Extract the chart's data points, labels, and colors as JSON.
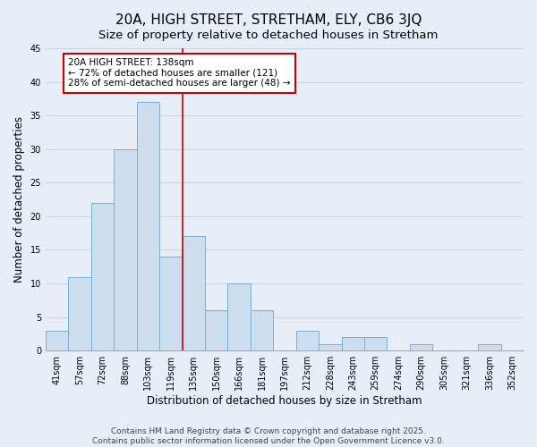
{
  "title": "20A, HIGH STREET, STRETHAM, ELY, CB6 3JQ",
  "subtitle": "Size of property relative to detached houses in Stretham",
  "xlabel": "Distribution of detached houses by size in Stretham",
  "ylabel": "Number of detached properties",
  "categories": [
    "41sqm",
    "57sqm",
    "72sqm",
    "88sqm",
    "103sqm",
    "119sqm",
    "135sqm",
    "150sqm",
    "166sqm",
    "181sqm",
    "197sqm",
    "212sqm",
    "228sqm",
    "243sqm",
    "259sqm",
    "274sqm",
    "290sqm",
    "305sqm",
    "321sqm",
    "336sqm",
    "352sqm"
  ],
  "values": [
    3,
    11,
    22,
    30,
    37,
    14,
    17,
    6,
    10,
    6,
    0,
    3,
    1,
    2,
    2,
    0,
    1,
    0,
    0,
    1,
    0
  ],
  "bar_color": "#ccddf0",
  "bar_edge_color": "#7aaed4",
  "ylim": [
    0,
    45
  ],
  "yticks": [
    0,
    5,
    10,
    15,
    20,
    25,
    30,
    35,
    40,
    45
  ],
  "vline_x_index": 6,
  "vline_color": "#cc0000",
  "annotation_title": "20A HIGH STREET: 138sqm",
  "annotation_line1": "← 72% of detached houses are smaller (121)",
  "annotation_line2": "28% of semi-detached houses are larger (48) →",
  "annotation_box_color": "#cc0000",
  "annotation_box_fill": "#ffffff",
  "footer_line1": "Contains HM Land Registry data © Crown copyright and database right 2025.",
  "footer_line2": "Contains public sector information licensed under the Open Government Licence v3.0.",
  "background_color": "#e8eef8",
  "plot_background_color": "#e8eef8",
  "grid_color": "#c8d4e8",
  "title_fontsize": 11,
  "subtitle_fontsize": 9.5,
  "label_fontsize": 8.5,
  "tick_fontsize": 7,
  "footer_fontsize": 6.5,
  "annotation_fontsize": 7.5
}
